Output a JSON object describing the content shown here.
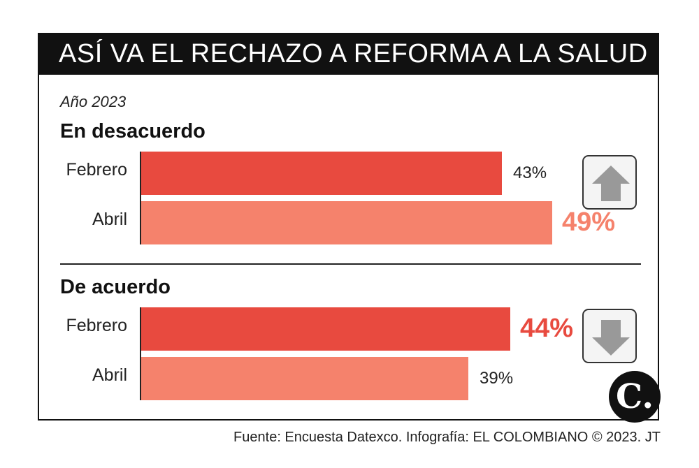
{
  "title": "ASÍ VA EL RECHAZO A REFORMA A LA SALUD",
  "subtitle": "Año 2023",
  "colors": {
    "febrero": "#e84a3f",
    "abril": "#f5826c",
    "highlight_desacuerdo": "#f5826c",
    "highlight_acuerdo": "#e84a3f",
    "arrow": "#999999"
  },
  "icons": {
    "up": "arrow-up-icon",
    "down": "arrow-down-icon"
  },
  "chart_data": [
    {
      "type": "bar",
      "title": "En desacuerdo",
      "categories": [
        "Febrero",
        "Abril"
      ],
      "values": [
        43,
        49
      ],
      "value_labels": [
        "43%",
        "49%"
      ],
      "unit": "%",
      "xlim": [
        0,
        70
      ],
      "grid": false,
      "trend": "up"
    },
    {
      "type": "bar",
      "title": "De acuerdo",
      "categories": [
        "Febrero",
        "Abril"
      ],
      "values": [
        44,
        39
      ],
      "value_labels": [
        "44%",
        "39%"
      ],
      "unit": "%",
      "xlim": [
        0,
        70
      ],
      "grid": false,
      "trend": "down"
    }
  ],
  "logo_text": "C.",
  "footer": "Fuente: Encuesta Datexco. Infografía: EL COLOMBIANO © 2023. JT"
}
